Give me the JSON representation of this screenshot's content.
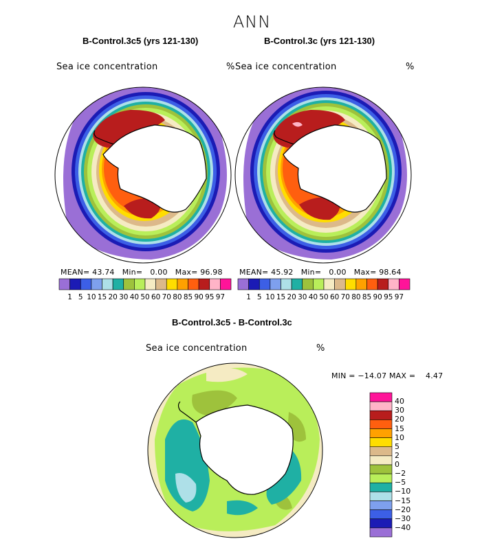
{
  "title": "ANN",
  "panels": [
    {
      "title": "B-Control.3c5 (yrs 121-130)",
      "variable": "Sea ice concentration",
      "units": "%",
      "stats": {
        "mean_label": "MEAN=",
        "mean": "43.74",
        "min_label": "Min=",
        "min": "0.00",
        "max_label": "Max=",
        "max": "96.98"
      }
    },
    {
      "title": "B-Control.3c (yrs 121-130)",
      "variable": "Sea ice concentration",
      "units": "%",
      "stats": {
        "mean_label": "MEAN=",
        "mean": "45.92",
        "min_label": "Min=",
        "min": "0.00",
        "max_label": "Max=",
        "max": "98.64"
      }
    }
  ],
  "concentration_scale": {
    "tick_labels": [
      "1",
      "5",
      "10",
      "15",
      "20",
      "30",
      "40",
      "50",
      "60",
      "70",
      "80",
      "85",
      "90",
      "95",
      "97"
    ],
    "colors": [
      "#9a6fd6",
      "#1b1bb5",
      "#3c5fe6",
      "#7ea0ee",
      "#aee0e8",
      "#1fb0a4",
      "#9ec23c",
      "#b9ee5a",
      "#f5ebc3",
      "#dcb98a",
      "#ffdd00",
      "#ffa100",
      "#ff5f0f",
      "#b81d1d",
      "#ffb4c7",
      "#ff1499"
    ]
  },
  "difference": {
    "title": "B-Control.3c5 - B-Control.3c",
    "variable": "Sea ice concentration",
    "units": "%",
    "minmax": "MIN = −14.07 MAX =    4.47",
    "legend_labels": [
      "40",
      "30",
      "20",
      "15",
      "10",
      "5",
      "2",
      "0",
      "−2",
      "−5",
      "−10",
      "−15",
      "−20",
      "−30",
      "−40"
    ],
    "legend_colors": [
      "#ff1499",
      "#ffb4c7",
      "#b81d1d",
      "#ff5f0f",
      "#ffa100",
      "#ffdd00",
      "#dcb98a",
      "#f5ebc3",
      "#9ec23c",
      "#b9ee5a",
      "#1fb0a4",
      "#aee0e8",
      "#7ea0ee",
      "#3c5fe6",
      "#1b1bb5",
      "#9a6fd6"
    ]
  },
  "map_colors": {
    "land": "#ffffff",
    "coast": "#000000",
    "ocean": "#ffffff"
  }
}
